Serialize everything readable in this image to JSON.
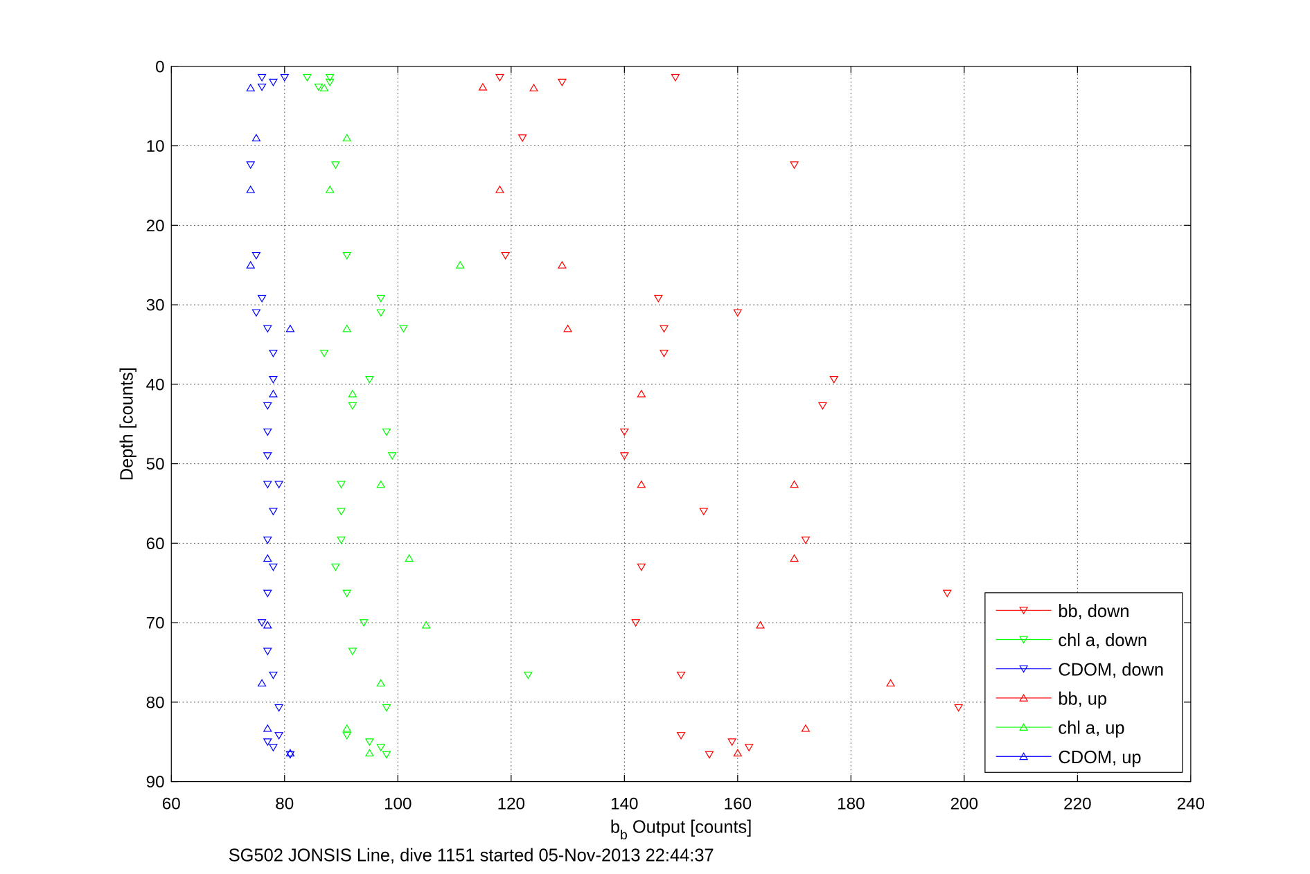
{
  "chart_data": {
    "type": "scatter",
    "title": "",
    "xlabel": {
      "main": "b",
      "sub": "b",
      "rest": " Output [counts]"
    },
    "ylabel": "Depth [counts]",
    "caption": "SG502 JONSIS Line, dive 1151 started 05-Nov-2013 22:44:37",
    "xlim": [
      60,
      240
    ],
    "ylim": [
      90,
      0
    ],
    "y_reversed": true,
    "xticks": [
      "60",
      "80",
      "100",
      "120",
      "140",
      "160",
      "180",
      "200",
      "220",
      "240"
    ],
    "yticks": [
      "0",
      "10",
      "20",
      "30",
      "40",
      "50",
      "60",
      "70",
      "80",
      "90"
    ],
    "grid": true,
    "legend_position": "bottom-right",
    "series": [
      {
        "name": "bb, down",
        "color": "#ff0000",
        "marker": "triangle-down",
        "points": [
          [
            118,
            1.4
          ],
          [
            129,
            2.0
          ],
          [
            149,
            1.4
          ],
          [
            122,
            9
          ],
          [
            170,
            12.4
          ],
          [
            119,
            23.8
          ],
          [
            146,
            29.2
          ],
          [
            160,
            31
          ],
          [
            147,
            33
          ],
          [
            147,
            36.1
          ],
          [
            177,
            39.4
          ],
          [
            175,
            42.7
          ],
          [
            140,
            46
          ],
          [
            140,
            49
          ],
          [
            154,
            56
          ],
          [
            172,
            59.6
          ],
          [
            143,
            63
          ],
          [
            197,
            66.3
          ],
          [
            142,
            70
          ],
          [
            150,
            76.6
          ],
          [
            199,
            80.7
          ],
          [
            150,
            84.2
          ],
          [
            159,
            85
          ],
          [
            162,
            85.7
          ],
          [
            155,
            86.6
          ]
        ]
      },
      {
        "name": "chl a, down",
        "color": "#00ff00",
        "marker": "triangle-down",
        "points": [
          [
            84,
            1.4
          ],
          [
            88,
            1.4
          ],
          [
            88,
            2.0
          ],
          [
            86,
            2.6
          ],
          [
            89,
            12.4
          ],
          [
            91,
            23.8
          ],
          [
            97,
            29.2
          ],
          [
            97,
            31
          ],
          [
            101,
            33
          ],
          [
            87,
            36.1
          ],
          [
            95,
            39.4
          ],
          [
            92,
            42.7
          ],
          [
            98,
            46
          ],
          [
            99,
            49
          ],
          [
            90,
            52.6
          ],
          [
            90,
            56
          ],
          [
            90,
            59.6
          ],
          [
            89,
            63
          ],
          [
            91,
            66.3
          ],
          [
            94,
            70
          ],
          [
            92,
            73.6
          ],
          [
            123,
            76.6
          ],
          [
            98,
            80.7
          ],
          [
            91,
            84.2
          ],
          [
            95,
            85
          ],
          [
            97,
            85.7
          ],
          [
            98,
            86.6
          ]
        ]
      },
      {
        "name": "CDOM, down",
        "color": "#0000ff",
        "marker": "triangle-down",
        "points": [
          [
            76,
            1.4
          ],
          [
            80,
            1.4
          ],
          [
            78,
            2
          ],
          [
            76,
            2.6
          ],
          [
            74,
            12.4
          ],
          [
            75,
            23.8
          ],
          [
            76,
            29.2
          ],
          [
            75,
            31
          ],
          [
            77,
            33
          ],
          [
            78,
            36.1
          ],
          [
            78,
            39.4
          ],
          [
            77,
            42.7
          ],
          [
            77,
            46
          ],
          [
            77,
            49
          ],
          [
            77,
            52.6
          ],
          [
            79,
            52.6
          ],
          [
            78,
            56
          ],
          [
            77,
            59.6
          ],
          [
            78,
            63
          ],
          [
            77,
            66.3
          ],
          [
            76,
            70
          ],
          [
            77,
            73.6
          ],
          [
            78,
            76.6
          ],
          [
            79,
            80.7
          ],
          [
            79,
            84.2
          ],
          [
            77,
            85
          ],
          [
            78,
            85.7
          ],
          [
            81,
            86.6
          ]
        ]
      },
      {
        "name": "bb, up",
        "color": "#ff0000",
        "marker": "triangle-up",
        "points": [
          [
            115,
            2.6
          ],
          [
            124,
            2.7
          ],
          [
            118,
            15.5
          ],
          [
            129,
            25
          ],
          [
            130,
            33
          ],
          [
            143,
            41.2
          ],
          [
            143,
            52.6
          ],
          [
            170,
            52.6
          ],
          [
            170,
            61.9
          ],
          [
            164,
            70.3
          ],
          [
            187,
            77.6
          ],
          [
            172,
            83.3
          ],
          [
            160,
            86.4
          ]
        ]
      },
      {
        "name": "chl a, up",
        "color": "#00ff00",
        "marker": "triangle-up",
        "points": [
          [
            87,
            2.7
          ],
          [
            91,
            9
          ],
          [
            88,
            15.5
          ],
          [
            111,
            25
          ],
          [
            91,
            33
          ],
          [
            92,
            41.2
          ],
          [
            97,
            52.6
          ],
          [
            102,
            61.9
          ],
          [
            105,
            70.3
          ],
          [
            97,
            77.6
          ],
          [
            91,
            83.3
          ],
          [
            95,
            86.4
          ]
        ]
      },
      {
        "name": "CDOM, up",
        "color": "#0000ff",
        "marker": "triangle-up",
        "points": [
          [
            74,
            2.7
          ],
          [
            75,
            9
          ],
          [
            74,
            15.5
          ],
          [
            74,
            25
          ],
          [
            81,
            33
          ],
          [
            78,
            41.2
          ],
          [
            77,
            61.9
          ],
          [
            77,
            70.3
          ],
          [
            76,
            77.6
          ],
          [
            77,
            83.3
          ],
          [
            81,
            86.4
          ]
        ]
      }
    ]
  }
}
